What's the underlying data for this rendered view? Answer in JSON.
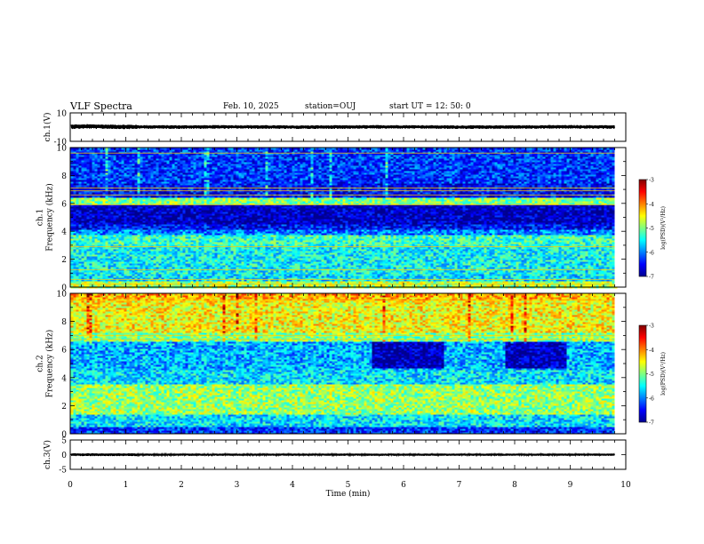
{
  "header": {
    "title": "VLF Spectra",
    "date": "Feb. 10, 2025",
    "station": "station=OUJ",
    "start_time": "start UT =   12: 50: 0"
  },
  "colors": {
    "colormap": [
      "#00008f",
      "#0000ff",
      "#0080ff",
      "#00ffff",
      "#80ff80",
      "#ffff00",
      "#ff8000",
      "#ff0000",
      "#800000"
    ]
  },
  "chart_data": [
    {
      "type": "line",
      "name": "ch1-waveform",
      "ylabel": "ch.1(V)",
      "ylim": [
        -10,
        10
      ],
      "ytick_labels": [
        "10",
        "-10"
      ],
      "xlim": [
        0,
        10
      ],
      "series": [
        {
          "x": [
            0,
            0.3,
            1,
            2,
            3,
            4,
            5,
            6,
            7,
            8,
            9,
            9.8
          ],
          "y": [
            0.3,
            0.5,
            0.2,
            0.1,
            0.2,
            0.0,
            0.1,
            0.2,
            0.0,
            0.1,
            0.2,
            0.1
          ],
          "envelope": 1.3
        }
      ]
    },
    {
      "type": "heatmap",
      "name": "ch1-spectrogram",
      "ylabel": "ch.1\nFrequency (kHz)",
      "ylim": [
        0,
        10
      ],
      "ytick_labels": [
        "0",
        "2",
        "4",
        "6",
        "8",
        "10"
      ],
      "xlim": [
        0,
        10
      ],
      "data_xmax": 9.8,
      "bands": [
        {
          "f0": 0,
          "f1": 0.5,
          "level": -4.8
        },
        {
          "f0": 0.5,
          "f1": 1.0,
          "level": -5.6
        },
        {
          "f0": 1.0,
          "f1": 3.0,
          "level": -5.5
        },
        {
          "f0": 3.0,
          "f1": 3.8,
          "level": -5.3
        },
        {
          "f0": 3.8,
          "f1": 4.2,
          "level": -6.0
        },
        {
          "f0": 4.2,
          "f1": 4.6,
          "level": -6.5
        },
        {
          "f0": 4.6,
          "f1": 6.0,
          "level": -6.8
        },
        {
          "f0": 6.0,
          "f1": 6.5,
          "level": -5.0
        },
        {
          "f0": 6.5,
          "f1": 7.5,
          "level": -6.5
        },
        {
          "f0": 7.5,
          "f1": 10,
          "level": -6.3
        }
      ],
      "lines_khz": [
        0.2,
        0.55,
        1.25,
        2.9,
        5.9,
        6.6,
        6.9,
        7.1,
        9.6
      ],
      "colorbar": {
        "ticks": [
          -3,
          -4,
          -5,
          -6,
          -7
        ],
        "label": "log(PSD)(V²/Hz)"
      }
    },
    {
      "type": "heatmap",
      "name": "ch2-spectrogram",
      "ylabel": "ch.2\nFrequency (kHz)",
      "ylim": [
        0,
        10
      ],
      "ytick_labels": [
        "0",
        "2",
        "4",
        "6",
        "8",
        "10"
      ],
      "xlim": [
        0,
        10
      ],
      "data_xmax": 9.8,
      "bands": [
        {
          "f0": 0,
          "f1": 0.6,
          "level": -6.3
        },
        {
          "f0": 0.6,
          "f1": 1.4,
          "level": -5.6
        },
        {
          "f0": 1.4,
          "f1": 3.6,
          "level": -4.9
        },
        {
          "f0": 3.6,
          "f1": 4.6,
          "level": -5.6
        },
        {
          "f0": 4.6,
          "f1": 6.6,
          "level": -5.8
        },
        {
          "f0": 6.6,
          "f1": 7.2,
          "level": -5.0
        },
        {
          "f0": 7.2,
          "f1": 9.5,
          "level": -4.5
        },
        {
          "f0": 9.5,
          "f1": 10,
          "level": -4.2
        }
      ],
      "dark_patches": [
        {
          "t0": 5.4,
          "t1": 6.7,
          "f0": 4.7,
          "f1": 6.6
        },
        {
          "t0": 7.8,
          "t1": 8.9,
          "f0": 4.7,
          "f1": 6.6
        }
      ],
      "lines_khz": [
        6.7,
        7.0,
        9.5
      ],
      "colorbar": {
        "ticks": [
          -3,
          -4,
          -5,
          -6,
          -7
        ],
        "label": "log(PSD)(V²/Hz)"
      }
    },
    {
      "type": "line",
      "name": "ch3-waveform",
      "ylabel": "ch.3(V)",
      "ylim": [
        -5,
        5
      ],
      "ytick_labels": [
        "5",
        "0",
        "-5"
      ],
      "xlim": [
        0,
        10
      ],
      "xlabel": "Time (min)",
      "xtick_labels": [
        "0",
        "1",
        "2",
        "3",
        "4",
        "5",
        "6",
        "7",
        "8",
        "9",
        "10"
      ],
      "series": [
        {
          "x": [
            0,
            9.8
          ],
          "y": [
            0,
            0
          ],
          "envelope": 0.4
        }
      ]
    }
  ]
}
